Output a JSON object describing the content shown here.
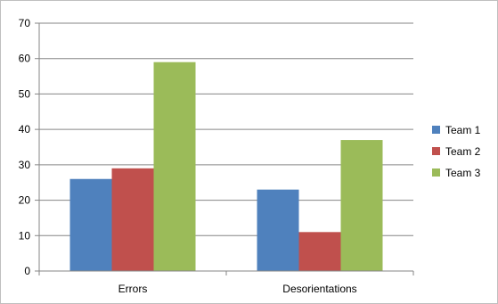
{
  "chart_data": {
    "type": "bar",
    "title": "",
    "xlabel": "",
    "ylabel": "",
    "categories": [
      "Errors",
      "Desorientations"
    ],
    "series": [
      {
        "name": "Team 1",
        "color": "#4f81bd",
        "values": [
          26,
          23
        ]
      },
      {
        "name": "Team 2",
        "color": "#c0504d",
        "values": [
          29,
          11
        ]
      },
      {
        "name": "Team 3",
        "color": "#9bbb59",
        "values": [
          59,
          37
        ]
      }
    ],
    "ylim": [
      0,
      70
    ],
    "yticks": [
      0,
      10,
      20,
      30,
      40,
      50,
      60,
      70
    ],
    "grid": true,
    "legend_position": "right"
  }
}
